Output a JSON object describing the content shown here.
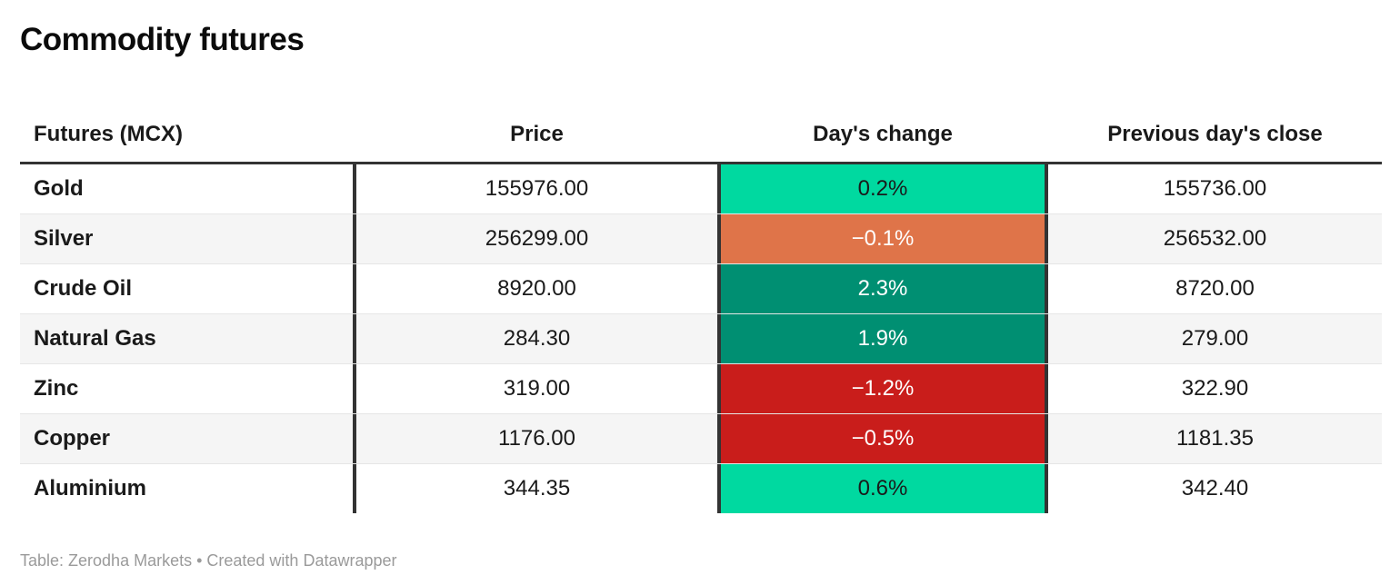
{
  "header": {
    "title": "Commodity futures"
  },
  "colors": {
    "positive_bright_green": "#00d9a0",
    "positive_dark_green": "#008f72",
    "negative_orange": "#df7449",
    "negative_red": "#c91d1b",
    "border_dark": "#333333",
    "row_stripe": "#f5f5f5",
    "text_dark": "#1a1a1a",
    "text_light": "#ffffff",
    "footer_gray": "#9a9a9a"
  },
  "chart_data": {
    "type": "table",
    "title": "Commodity futures",
    "columns": [
      "Futures (MCX)",
      "Price",
      "Day's change",
      "Previous day's close"
    ],
    "rows": [
      {
        "name": "Gold",
        "price": "155976.00",
        "change": "0.2%",
        "prev_close": "155736.00",
        "change_bg": "#00d9a0",
        "change_fg": "#1a1a1a"
      },
      {
        "name": "Silver",
        "price": "256299.00",
        "change": "−0.1%",
        "prev_close": "256532.00",
        "change_bg": "#df7449",
        "change_fg": "#ffffff"
      },
      {
        "name": "Crude Oil",
        "price": "8920.00",
        "change": "2.3%",
        "prev_close": "8720.00",
        "change_bg": "#008f72",
        "change_fg": "#ffffff"
      },
      {
        "name": "Natural Gas",
        "price": "284.30",
        "change": "1.9%",
        "prev_close": "279.00",
        "change_bg": "#008f72",
        "change_fg": "#ffffff"
      },
      {
        "name": "Zinc",
        "price": "319.00",
        "change": "−1.2%",
        "prev_close": "322.90",
        "change_bg": "#c91d1b",
        "change_fg": "#ffffff"
      },
      {
        "name": "Copper",
        "price": "1176.00",
        "change": "−0.5%",
        "prev_close": "1181.35",
        "change_bg": "#c91d1b",
        "change_fg": "#ffffff"
      },
      {
        "name": "Aluminium",
        "price": "344.35",
        "change": "0.6%",
        "prev_close": "342.40",
        "change_bg": "#00d9a0",
        "change_fg": "#1a1a1a"
      }
    ],
    "footer": "Table: Zerodha Markets • Created with Datawrapper"
  }
}
